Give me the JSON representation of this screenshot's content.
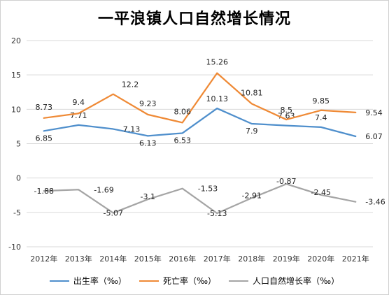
{
  "chart_data": {
    "type": "line",
    "title": "一平浪镇人口自然增长情况",
    "categories": [
      "2012年",
      "2013年",
      "2014年",
      "2015年",
      "2016年",
      "2017年",
      "2018年",
      "2019年",
      "2020年",
      "2021年"
    ],
    "ylim": [
      -10,
      20
    ],
    "yticks": [
      -10,
      -5,
      0,
      5,
      10,
      15,
      20
    ],
    "grid": true,
    "legend_position": "bottom",
    "series": [
      {
        "name": "出生率（‰）",
        "color": "#4f8fcc",
        "values": [
          6.85,
          7.71,
          7.13,
          6.13,
          6.53,
          10.13,
          7.9,
          7.63,
          7.4,
          6.07
        ],
        "labels": [
          "6.85",
          "7.71",
          "7.13",
          "6.13",
          "6.53",
          "10.13",
          "7.9",
          "7.63",
          "7.4",
          "6.07"
        ]
      },
      {
        "name": "死亡率（‰）",
        "color": "#ef8a36",
        "values": [
          8.73,
          9.4,
          12.2,
          9.23,
          8.06,
          15.26,
          10.81,
          8.5,
          9.85,
          9.54
        ],
        "labels": [
          "8.73",
          "9.4",
          "12.2",
          "9.23",
          "8.06",
          "15.26",
          "10.81",
          "8.5",
          "9.85",
          "9.54"
        ]
      },
      {
        "name": "人口自然增长率（‰）",
        "color": "#a5a5a5",
        "values": [
          -1.88,
          -1.69,
          -5.07,
          -3.1,
          -1.53,
          -5.13,
          -2.91,
          -0.87,
          -2.45,
          -3.46
        ],
        "labels": [
          "-1.88",
          "-1.69",
          "-5.07",
          "-3.1",
          "-1.53",
          "-5.13",
          "-2.91",
          "-0.87",
          "-2.45",
          "-3.46"
        ]
      }
    ]
  }
}
